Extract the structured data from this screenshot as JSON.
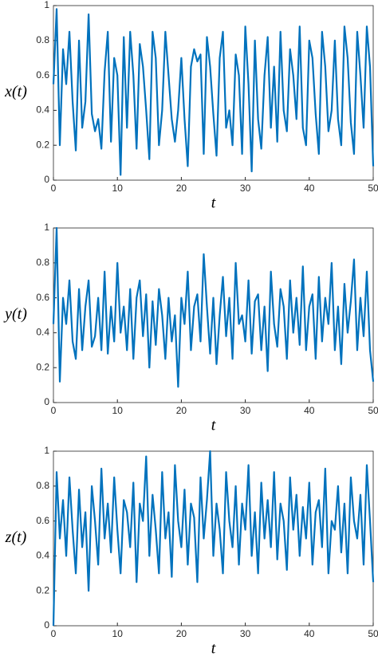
{
  "chart_data": [
    {
      "type": "line",
      "y_label": "x(t)",
      "x_label": "t",
      "color": "#0072bd",
      "x": [
        0,
        0.5,
        1,
        1.5,
        2,
        2.5,
        3,
        3.5,
        4,
        4.5,
        5,
        5.5,
        6,
        6.5,
        7,
        7.5,
        8,
        8.5,
        9,
        9.5,
        10,
        10.5,
        11,
        11.5,
        12,
        12.5,
        13,
        13.5,
        14,
        14.5,
        15,
        15.5,
        16,
        16.5,
        17,
        17.5,
        18,
        18.5,
        19,
        19.5,
        20,
        20.5,
        21,
        21.5,
        22,
        22.5,
        23,
        23.5,
        24,
        24.5,
        25,
        25.5,
        26,
        26.5,
        27,
        27.5,
        28,
        28.5,
        29,
        29.5,
        30,
        30.5,
        31,
        31.5,
        32,
        32.5,
        33,
        33.5,
        34,
        34.5,
        35,
        35.5,
        36,
        36.5,
        37,
        37.5,
        38,
        38.5,
        39,
        39.5,
        40,
        40.5,
        41,
        41.5,
        42,
        42.5,
        43,
        43.5,
        44,
        44.5,
        45,
        45.5,
        46,
        46.5,
        47,
        47.5,
        48,
        48.5,
        49,
        49.5,
        50
      ],
      "values": [
        0.55,
        0.98,
        0.2,
        0.75,
        0.55,
        0.85,
        0.45,
        0.17,
        0.8,
        0.3,
        0.45,
        0.95,
        0.38,
        0.28,
        0.35,
        0.18,
        0.62,
        0.85,
        0.22,
        0.7,
        0.6,
        0.03,
        0.82,
        0.3,
        0.85,
        0.6,
        0.18,
        0.78,
        0.65,
        0.4,
        0.12,
        0.85,
        0.7,
        0.2,
        0.4,
        0.85,
        0.6,
        0.35,
        0.22,
        0.4,
        0.7,
        0.35,
        0.08,
        0.65,
        0.75,
        0.68,
        0.72,
        0.15,
        0.82,
        0.65,
        0.38,
        0.14,
        0.7,
        0.85,
        0.3,
        0.4,
        0.2,
        0.72,
        0.6,
        0.15,
        0.88,
        0.55,
        0.05,
        0.8,
        0.35,
        0.18,
        0.6,
        0.82,
        0.3,
        0.65,
        0.22,
        0.85,
        0.4,
        0.28,
        0.75,
        0.6,
        0.35,
        0.88,
        0.3,
        0.2,
        0.8,
        0.7,
        0.38,
        0.15,
        0.85,
        0.65,
        0.28,
        0.4,
        0.8,
        0.35,
        0.2,
        0.88,
        0.7,
        0.33,
        0.15,
        0.85,
        0.6,
        0.3,
        0.88,
        0.65,
        0.08
      ],
      "xlim": [
        0,
        50
      ],
      "xticks": [
        0,
        10,
        20,
        30,
        40,
        50
      ],
      "ylim": [
        0,
        1
      ],
      "yticks": [
        0,
        0.2,
        0.4,
        0.6,
        0.8,
        1
      ]
    },
    {
      "type": "line",
      "y_label": "y(t)",
      "x_label": "t",
      "color": "#0072bd",
      "x": [
        0,
        0.5,
        1,
        1.5,
        2,
        2.5,
        3,
        3.5,
        4,
        4.5,
        5,
        5.5,
        6,
        6.5,
        7,
        7.5,
        8,
        8.5,
        9,
        9.5,
        10,
        10.5,
        11,
        11.5,
        12,
        12.5,
        13,
        13.5,
        14,
        14.5,
        15,
        15.5,
        16,
        16.5,
        17,
        17.5,
        18,
        18.5,
        19,
        19.5,
        20,
        20.5,
        21,
        21.5,
        22,
        22.5,
        23,
        23.5,
        24,
        24.5,
        25,
        25.5,
        26,
        26.5,
        27,
        27.5,
        28,
        28.5,
        29,
        29.5,
        30,
        30.5,
        31,
        31.5,
        32,
        32.5,
        33,
        33.5,
        34,
        34.5,
        35,
        35.5,
        36,
        36.5,
        37,
        37.5,
        38,
        38.5,
        39,
        39.5,
        40,
        40.5,
        41,
        41.5,
        42,
        42.5,
        43,
        43.5,
        44,
        44.5,
        45,
        45.5,
        46,
        46.5,
        47,
        47.5,
        48,
        48.5,
        49,
        49.5,
        50
      ],
      "values": [
        0.45,
        1.0,
        0.12,
        0.6,
        0.45,
        0.7,
        0.35,
        0.25,
        0.65,
        0.3,
        0.55,
        0.7,
        0.32,
        0.38,
        0.6,
        0.3,
        0.75,
        0.28,
        0.55,
        0.35,
        0.8,
        0.4,
        0.55,
        0.3,
        0.65,
        0.25,
        0.6,
        0.7,
        0.38,
        0.62,
        0.2,
        0.58,
        0.33,
        0.65,
        0.5,
        0.25,
        0.6,
        0.35,
        0.5,
        0.09,
        0.6,
        0.45,
        0.75,
        0.3,
        0.55,
        0.62,
        0.35,
        0.85,
        0.55,
        0.28,
        0.6,
        0.22,
        0.5,
        0.72,
        0.38,
        0.6,
        0.25,
        0.8,
        0.45,
        0.5,
        0.35,
        0.7,
        0.28,
        0.58,
        0.62,
        0.3,
        0.55,
        0.18,
        0.75,
        0.45,
        0.32,
        0.65,
        0.55,
        0.25,
        0.7,
        0.4,
        0.6,
        0.33,
        0.78,
        0.3,
        0.55,
        0.62,
        0.25,
        0.72,
        0.35,
        0.6,
        0.45,
        0.8,
        0.3,
        0.55,
        0.22,
        0.68,
        0.4,
        0.58,
        0.82,
        0.3,
        0.6,
        0.38,
        0.75,
        0.3,
        0.12
      ],
      "xlim": [
        0,
        50
      ],
      "xticks": [
        0,
        10,
        20,
        30,
        40,
        50
      ],
      "ylim": [
        0,
        1
      ],
      "yticks": [
        0,
        0.2,
        0.4,
        0.6,
        0.8,
        1
      ]
    },
    {
      "type": "line",
      "y_label": "z(t)",
      "x_label": "t",
      "color": "#0072bd",
      "x": [
        0,
        0.5,
        1,
        1.5,
        2,
        2.5,
        3,
        3.5,
        4,
        4.5,
        5,
        5.5,
        6,
        6.5,
        7,
        7.5,
        8,
        8.5,
        9,
        9.5,
        10,
        10.5,
        11,
        11.5,
        12,
        12.5,
        13,
        13.5,
        14,
        14.5,
        15,
        15.5,
        16,
        16.5,
        17,
        17.5,
        18,
        18.5,
        19,
        19.5,
        20,
        20.5,
        21,
        21.5,
        22,
        22.5,
        23,
        23.5,
        24,
        24.5,
        25,
        25.5,
        26,
        26.5,
        27,
        27.5,
        28,
        28.5,
        29,
        29.5,
        30,
        30.5,
        31,
        31.5,
        32,
        32.5,
        33,
        33.5,
        34,
        34.5,
        35,
        35.5,
        36,
        36.5,
        37,
        37.5,
        38,
        38.5,
        39,
        39.5,
        40,
        40.5,
        41,
        41.5,
        42,
        42.5,
        43,
        43.5,
        44,
        44.5,
        45,
        45.5,
        46,
        46.5,
        47,
        47.5,
        48,
        48.5,
        49,
        49.5,
        50
      ],
      "values": [
        0.0,
        0.88,
        0.5,
        0.72,
        0.4,
        0.85,
        0.55,
        0.3,
        0.78,
        0.45,
        0.65,
        0.2,
        0.8,
        0.6,
        0.35,
        0.9,
        0.5,
        0.7,
        0.42,
        0.85,
        0.55,
        0.3,
        0.72,
        0.65,
        0.45,
        0.82,
        0.25,
        0.7,
        0.6,
        0.97,
        0.4,
        0.75,
        0.55,
        0.3,
        0.88,
        0.5,
        0.65,
        0.28,
        0.92,
        0.6,
        0.45,
        0.78,
        0.35,
        0.7,
        0.62,
        0.25,
        0.85,
        0.5,
        0.72,
        1.0,
        0.4,
        0.7,
        0.55,
        0.3,
        0.88,
        0.6,
        0.45,
        0.8,
        0.35,
        0.7,
        0.55,
        0.92,
        0.4,
        0.65,
        0.3,
        0.82,
        0.5,
        0.72,
        0.45,
        0.88,
        0.38,
        0.7,
        0.6,
        0.32,
        0.85,
        0.55,
        0.75,
        0.4,
        0.68,
        0.5,
        0.82,
        0.35,
        0.65,
        0.72,
        0.45,
        0.9,
        0.3,
        0.6,
        0.55,
        0.8,
        0.42,
        0.7,
        0.3,
        0.85,
        0.6,
        0.5,
        0.75,
        0.35,
        0.92,
        0.6,
        0.25
      ],
      "xlim": [
        0,
        50
      ],
      "xticks": [
        0,
        10,
        20,
        30,
        40,
        50
      ],
      "ylim": [
        0,
        1
      ],
      "yticks": [
        0,
        0.2,
        0.4,
        0.6,
        0.8,
        1
      ]
    }
  ]
}
